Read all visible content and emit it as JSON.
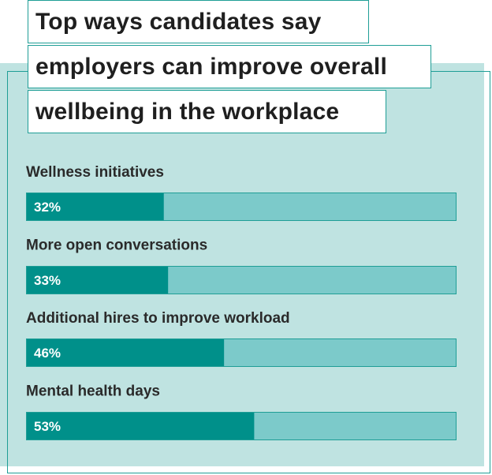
{
  "title_lines": [
    "Top ways candidates say",
    "employers can improve overall",
    "wellbeing in the workplace"
  ],
  "colors": {
    "panel": "#bfe3e1",
    "track": "#7ccaca",
    "fill": "#00908a",
    "border": "#1f9e96"
  },
  "chart_data": {
    "type": "bar",
    "orientation": "horizontal",
    "categories": [
      "Wellness initiatives",
      "More open conversations",
      "Additional hires to improve workload",
      "Mental health days"
    ],
    "values": [
      32,
      33,
      46,
      53
    ],
    "value_labels": [
      "32%",
      "33%",
      "46%",
      "53%"
    ],
    "xlim": [
      0,
      100
    ],
    "grid": false,
    "legend": "none"
  }
}
